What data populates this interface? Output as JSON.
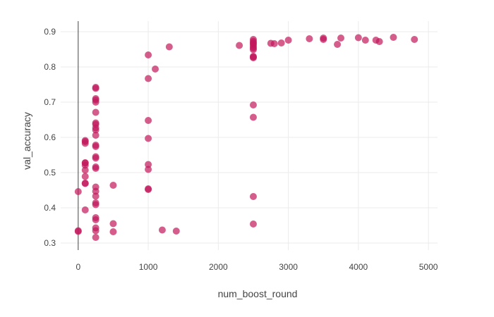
{
  "chart_data": {
    "type": "scatter",
    "xlabel": "num_boost_round",
    "ylabel": "val_accuracy",
    "xlim": [
      -250,
      5130
    ],
    "ylim": [
      0.28,
      0.93
    ],
    "x_ticks": [
      0,
      1000,
      2000,
      3000,
      4000,
      5000
    ],
    "x_tick_labels": [
      "0",
      "1000",
      "2000",
      "3000",
      "4000",
      "5000"
    ],
    "y_ticks": [
      0.3,
      0.4,
      0.5,
      0.6,
      0.7,
      0.8,
      0.9
    ],
    "y_tick_labels": [
      "0.3",
      "0.4",
      "0.5",
      "0.6",
      "0.7",
      "0.8",
      "0.9"
    ],
    "grid": true,
    "marker_color": "#c2185b",
    "points": [
      {
        "x": 0,
        "y": 0.333
      },
      {
        "x": 0,
        "y": 0.335
      },
      {
        "x": 0,
        "y": 0.446
      },
      {
        "x": 100,
        "y": 0.394
      },
      {
        "x": 100,
        "y": 0.469
      },
      {
        "x": 100,
        "y": 0.47
      },
      {
        "x": 100,
        "y": 0.489
      },
      {
        "x": 100,
        "y": 0.507
      },
      {
        "x": 100,
        "y": 0.521
      },
      {
        "x": 100,
        "y": 0.527
      },
      {
        "x": 100,
        "y": 0.528
      },
      {
        "x": 100,
        "y": 0.583
      },
      {
        "x": 100,
        "y": 0.588
      },
      {
        "x": 100,
        "y": 0.591
      },
      {
        "x": 250,
        "y": 0.316
      },
      {
        "x": 250,
        "y": 0.335
      },
      {
        "x": 250,
        "y": 0.343
      },
      {
        "x": 250,
        "y": 0.366
      },
      {
        "x": 250,
        "y": 0.372
      },
      {
        "x": 250,
        "y": 0.409
      },
      {
        "x": 250,
        "y": 0.414
      },
      {
        "x": 250,
        "y": 0.433
      },
      {
        "x": 250,
        "y": 0.447
      },
      {
        "x": 250,
        "y": 0.459
      },
      {
        "x": 250,
        "y": 0.512
      },
      {
        "x": 250,
        "y": 0.516
      },
      {
        "x": 250,
        "y": 0.541
      },
      {
        "x": 250,
        "y": 0.545
      },
      {
        "x": 250,
        "y": 0.574
      },
      {
        "x": 250,
        "y": 0.578
      },
      {
        "x": 250,
        "y": 0.606
      },
      {
        "x": 250,
        "y": 0.621
      },
      {
        "x": 250,
        "y": 0.627
      },
      {
        "x": 250,
        "y": 0.637
      },
      {
        "x": 250,
        "y": 0.641
      },
      {
        "x": 250,
        "y": 0.671
      },
      {
        "x": 250,
        "y": 0.7
      },
      {
        "x": 250,
        "y": 0.706
      },
      {
        "x": 250,
        "y": 0.71
      },
      {
        "x": 250,
        "y": 0.739
      },
      {
        "x": 250,
        "y": 0.742
      },
      {
        "x": 500,
        "y": 0.332
      },
      {
        "x": 500,
        "y": 0.355
      },
      {
        "x": 500,
        "y": 0.464
      },
      {
        "x": 1000,
        "y": 0.452
      },
      {
        "x": 1000,
        "y": 0.454
      },
      {
        "x": 1000,
        "y": 0.509
      },
      {
        "x": 1000,
        "y": 0.523
      },
      {
        "x": 1000,
        "y": 0.597
      },
      {
        "x": 1000,
        "y": 0.648
      },
      {
        "x": 1000,
        "y": 0.767
      },
      {
        "x": 1000,
        "y": 0.834
      },
      {
        "x": 1100,
        "y": 0.794
      },
      {
        "x": 1200,
        "y": 0.337
      },
      {
        "x": 1300,
        "y": 0.857
      },
      {
        "x": 1400,
        "y": 0.334
      },
      {
        "x": 2300,
        "y": 0.861
      },
      {
        "x": 2500,
        "y": 0.354
      },
      {
        "x": 2500,
        "y": 0.432
      },
      {
        "x": 2500,
        "y": 0.657
      },
      {
        "x": 2500,
        "y": 0.692
      },
      {
        "x": 2500,
        "y": 0.826
      },
      {
        "x": 2500,
        "y": 0.828
      },
      {
        "x": 2500,
        "y": 0.83
      },
      {
        "x": 2500,
        "y": 0.849
      },
      {
        "x": 2500,
        "y": 0.853
      },
      {
        "x": 2500,
        "y": 0.857
      },
      {
        "x": 2500,
        "y": 0.862
      },
      {
        "x": 2500,
        "y": 0.866
      },
      {
        "x": 2500,
        "y": 0.869
      },
      {
        "x": 2500,
        "y": 0.873
      },
      {
        "x": 2500,
        "y": 0.878
      },
      {
        "x": 2750,
        "y": 0.867
      },
      {
        "x": 2800,
        "y": 0.866
      },
      {
        "x": 2900,
        "y": 0.868
      },
      {
        "x": 3000,
        "y": 0.876
      },
      {
        "x": 3300,
        "y": 0.88
      },
      {
        "x": 3500,
        "y": 0.878
      },
      {
        "x": 3500,
        "y": 0.882
      },
      {
        "x": 3700,
        "y": 0.864
      },
      {
        "x": 3750,
        "y": 0.882
      },
      {
        "x": 4000,
        "y": 0.883
      },
      {
        "x": 4100,
        "y": 0.876
      },
      {
        "x": 4250,
        "y": 0.876
      },
      {
        "x": 4300,
        "y": 0.872
      },
      {
        "x": 4500,
        "y": 0.884
      },
      {
        "x": 4800,
        "y": 0.878
      }
    ]
  }
}
